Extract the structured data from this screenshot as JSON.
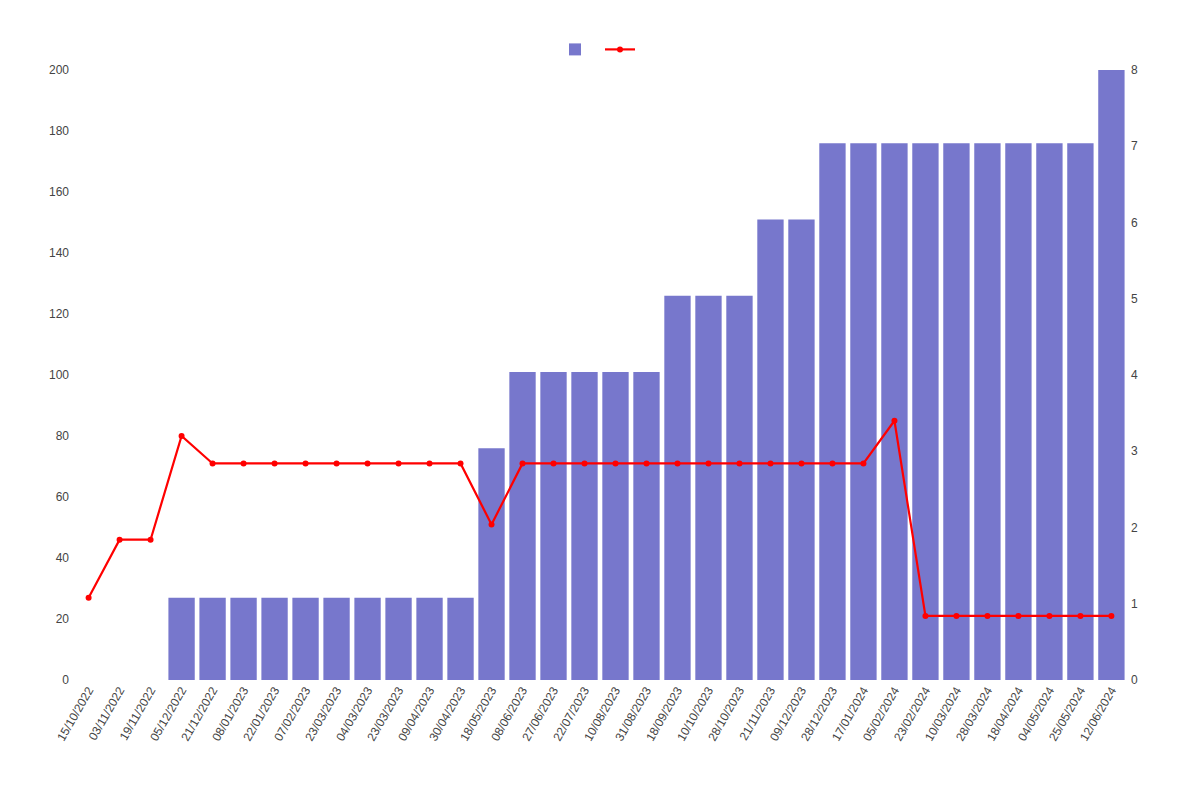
{
  "chart_data": {
    "type": "bar",
    "categories": [
      "15/10/2022",
      "03/11/2022",
      "19/11/2022",
      "05/12/2022",
      "21/12/2022",
      "08/01/2023",
      "22/01/2023",
      "07/02/2023",
      "23/03/2023",
      "04/03/2023",
      "23/03/2023",
      "09/04/2023",
      "30/04/2023",
      "18/05/2023",
      "08/06/2023",
      "27/06/2023",
      "22/07/2023",
      "10/08/2023",
      "31/08/2023",
      "18/09/2023",
      "10/10/2023",
      "28/10/2023",
      "21/11/2023",
      "09/12/2023",
      "28/12/2023",
      "17/01/2024",
      "05/02/2024",
      "23/02/2024",
      "10/03/2024",
      "28/03/2024",
      "18/04/2024",
      "04/05/2024",
      "25/05/2024",
      "12/06/2024"
    ],
    "series": [
      {
        "type": "bar",
        "color": "#7777cc",
        "values": [
          0,
          0,
          0,
          27,
          27,
          27,
          27,
          27,
          27,
          27,
          27,
          27,
          27,
          76,
          101,
          101,
          101,
          101,
          101,
          126,
          126,
          126,
          151,
          151,
          176,
          176,
          176,
          176,
          176,
          176,
          176,
          176,
          176,
          200
        ]
      },
      {
        "type": "line",
        "color": "#ff0000",
        "marker": "circle",
        "values": [
          27,
          46,
          46,
          80,
          71,
          71,
          71,
          71,
          71,
          71,
          71,
          71,
          71,
          51,
          71,
          71,
          71,
          71,
          71,
          71,
          71,
          71,
          71,
          71,
          71,
          71,
          85,
          21,
          21,
          21,
          21,
          21,
          21,
          21
        ]
      }
    ],
    "ylim": [
      0,
      200
    ],
    "yticks": [
      0,
      20,
      40,
      60,
      80,
      100,
      120,
      140,
      160,
      180,
      200
    ],
    "y2lim": [
      0,
      8
    ],
    "y2ticks": [
      0,
      1,
      2,
      3,
      4,
      5,
      6,
      7,
      8
    ],
    "grid": false,
    "legend": "top"
  }
}
